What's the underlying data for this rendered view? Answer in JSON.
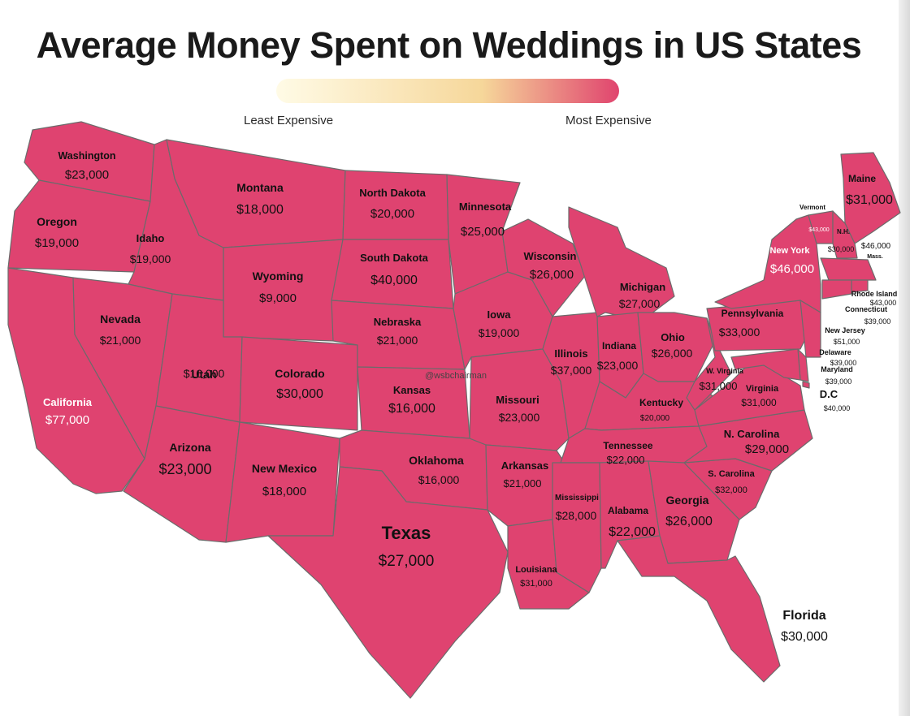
{
  "title": "Average Money Spent on Weddings in US States",
  "legend": {
    "least_label": "Least Expensive",
    "most_label": "Most Expensive",
    "low_color": "#fffbe6",
    "mid_color": "#f6d79a",
    "high_color": "#e0446e"
  },
  "watermark": "@wsbchairman",
  "states": [
    {
      "name": "Washington",
      "value": "$23,000"
    },
    {
      "name": "Oregon",
      "value": "$19,000"
    },
    {
      "name": "California",
      "value": "$77,000"
    },
    {
      "name": "Idaho",
      "value": "$19,000"
    },
    {
      "name": "Nevada",
      "value": "$21,000"
    },
    {
      "name": "Montana",
      "value": "$18,000"
    },
    {
      "name": "Wyoming",
      "value": "$9,000"
    },
    {
      "name": "Utah",
      "value": "$16,000"
    },
    {
      "name": "Arizona",
      "value": "$23,000"
    },
    {
      "name": "Colorado",
      "value": "$30,000"
    },
    {
      "name": "New Mexico",
      "value": "$18,000"
    },
    {
      "name": "North Dakota",
      "value": "$20,000"
    },
    {
      "name": "South Dakota",
      "value": "$40,000"
    },
    {
      "name": "Nebraska",
      "value": "$21,000"
    },
    {
      "name": "Kansas",
      "value": "$16,000"
    },
    {
      "name": "Oklahoma",
      "value": "$16,000"
    },
    {
      "name": "Texas",
      "value": "$27,000"
    },
    {
      "name": "Minnesota",
      "value": "$25,000"
    },
    {
      "name": "Iowa",
      "value": "$19,000"
    },
    {
      "name": "Missouri",
      "value": "$23,000"
    },
    {
      "name": "Arkansas",
      "value": "$21,000"
    },
    {
      "name": "Louisiana",
      "value": "$31,000"
    },
    {
      "name": "Wisconsin",
      "value": "$26,000"
    },
    {
      "name": "Illinois",
      "value": "$37,000"
    },
    {
      "name": "Michigan",
      "value": "$27,000"
    },
    {
      "name": "Indiana",
      "value": "$23,000"
    },
    {
      "name": "Ohio",
      "value": "$26,000"
    },
    {
      "name": "Kentucky",
      "value": "$20,000"
    },
    {
      "name": "Tennessee",
      "value": "$22,000"
    },
    {
      "name": "Mississippi",
      "value": "$28,000"
    },
    {
      "name": "Alabama",
      "value": "$22,000"
    },
    {
      "name": "Georgia",
      "value": "$26,000"
    },
    {
      "name": "Florida",
      "value": "$30,000"
    },
    {
      "name": "S. Carolina",
      "value": "$32,000"
    },
    {
      "name": "N. Carolina",
      "value": "$29,000"
    },
    {
      "name": "Virginia",
      "value": "$31,000"
    },
    {
      "name": "W. Virginia",
      "value": "$31,000"
    },
    {
      "name": "Pennsylvania",
      "value": "$33,000"
    },
    {
      "name": "New York",
      "value": "$46,000"
    },
    {
      "name": "Maine",
      "value": "$31,000"
    },
    {
      "name": "Vermont",
      "value": "$43,000"
    },
    {
      "name": "N.H.",
      "value": "$30,000"
    },
    {
      "name": "Mass.",
      "value": "$46,000"
    },
    {
      "name": "Rhode Island",
      "value": "$43,000"
    },
    {
      "name": "Connecticut",
      "value": "$39,000"
    },
    {
      "name": "New Jersey",
      "value": "$51,000"
    },
    {
      "name": "Delaware",
      "value": "$39,000"
    },
    {
      "name": "Maryland",
      "value": "$39,000"
    },
    {
      "name": "D.C",
      "value": "$40,000"
    }
  ]
}
